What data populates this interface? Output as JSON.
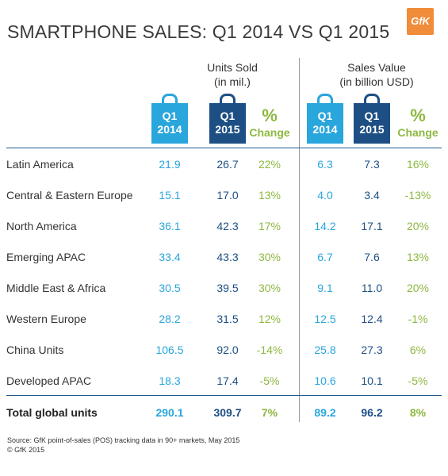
{
  "chart_data": {
    "type": "table",
    "title": "SMARTPHONE SALES: Q1 2014 VS Q1 2015",
    "logo": "GfK",
    "groups": [
      {
        "line1": "Units Sold",
        "line2": "(in mil.)"
      },
      {
        "line1": "Sales Value",
        "line2": "(in billion USD)"
      }
    ],
    "column_headers": [
      {
        "line1": "Q1",
        "line2": "2014"
      },
      {
        "line1": "Q1",
        "line2": "2015"
      },
      {
        "line1": "%",
        "line2": "Change"
      },
      {
        "line1": "Q1",
        "line2": "2014"
      },
      {
        "line1": "Q1",
        "line2": "2015"
      },
      {
        "line1": "%",
        "line2": "Change"
      }
    ],
    "rows": [
      {
        "region": "Latin America",
        "values": [
          "21.9",
          "26.7",
          "22%",
          "6.3",
          "7.3",
          "16%"
        ]
      },
      {
        "region": "Central & Eastern Europe",
        "values": [
          "15.1",
          "17.0",
          "13%",
          "4.0",
          "3.4",
          "-13%"
        ]
      },
      {
        "region": "North America",
        "values": [
          "36.1",
          "42.3",
          "17%",
          "14.2",
          "17.1",
          "20%"
        ]
      },
      {
        "region": "Emerging APAC",
        "values": [
          "33.4",
          "43.3",
          "30%",
          "6.7",
          "7.6",
          "13%"
        ]
      },
      {
        "region": "Middle East & Africa",
        "values": [
          "30.5",
          "39.5",
          "30%",
          "9.1",
          "11.0",
          "20%"
        ]
      },
      {
        "region": "Western Europe",
        "values": [
          "28.2",
          "31.5",
          "12%",
          "12.5",
          "12.4",
          "-1%"
        ]
      },
      {
        "region": "China Units",
        "values": [
          "106.5",
          "92.0",
          "-14%",
          "25.8",
          "27.3",
          "6%"
        ]
      },
      {
        "region": "Developed APAC",
        "values": [
          "18.3",
          "17.4",
          "-5%",
          "10.6",
          "10.1",
          "-5%"
        ]
      }
    ],
    "total": {
      "region": "Total global units",
      "values": [
        "290.1",
        "309.7",
        "7%",
        "89.2",
        "96.2",
        "8%"
      ]
    },
    "source_line1": "Source: GfK point-of-sales (POS) tracking data in 90+ markets, May 2015",
    "source_line2": "© GfK 2015",
    "colors": {
      "q1_2014": "#29a6dc",
      "q1_2015": "#1d4f85",
      "change": "#8db840",
      "rule": "#1f5a8c",
      "logo": "#f08c3a"
    }
  }
}
